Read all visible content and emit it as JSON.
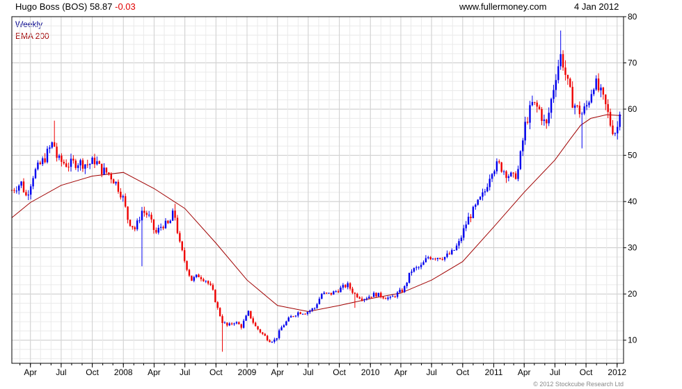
{
  "header": {
    "security": "Hugo Boss (BOS)",
    "last_price": "58.87",
    "change": "-0.03",
    "website": "www.fullermoney.com",
    "date": "4 Jan 2012"
  },
  "legend": {
    "frequency": "Weekly",
    "indicator": "EMA 200"
  },
  "copyright": "© 2012 Stockcube Research Ltd",
  "colors": {
    "up": "#0000ee",
    "down": "#ee0000",
    "ema": "#a00000",
    "grid": "#d8d8d8",
    "axis": "#000000"
  },
  "chart_data": {
    "type": "candlestick",
    "ylim": [
      5,
      80
    ],
    "xlim": [
      "2007-02-05",
      "2012-01-20"
    ],
    "y_ticks": [
      10,
      20,
      30,
      40,
      50,
      60,
      70,
      80
    ],
    "x_ticks": [
      {
        "label": "Apr",
        "date": "2007-04-01"
      },
      {
        "label": "Jul",
        "date": "2007-07-01"
      },
      {
        "label": "Oct",
        "date": "2007-10-01"
      },
      {
        "label": "2008",
        "date": "2008-01-01"
      },
      {
        "label": "Apr",
        "date": "2008-04-01"
      },
      {
        "label": "Jul",
        "date": "2008-07-01"
      },
      {
        "label": "Oct",
        "date": "2008-10-01"
      },
      {
        "label": "2009",
        "date": "2009-01-01"
      },
      {
        "label": "Apr",
        "date": "2009-04-01"
      },
      {
        "label": "Jul",
        "date": "2009-07-01"
      },
      {
        "label": "Oct",
        "date": "2009-10-01"
      },
      {
        "label": "2010",
        "date": "2010-01-01"
      },
      {
        "label": "Apr",
        "date": "2010-04-01"
      },
      {
        "label": "Jul",
        "date": "2010-07-01"
      },
      {
        "label": "Oct",
        "date": "2010-10-01"
      },
      {
        "label": "2011",
        "date": "2011-01-01"
      },
      {
        "label": "Apr",
        "date": "2011-04-01"
      },
      {
        "label": "Jul",
        "date": "2011-07-01"
      },
      {
        "label": "Oct",
        "date": "2011-10-01"
      },
      {
        "label": "2012",
        "date": "2012-01-01"
      }
    ],
    "price_path": [
      [
        "2007-02-05",
        42.5
      ],
      [
        "2007-03-05",
        44
      ],
      [
        "2007-03-20",
        41
      ],
      [
        "2007-04-10",
        46
      ],
      [
        "2007-05-10",
        49
      ],
      [
        "2007-05-25",
        51
      ],
      [
        "2007-06-08",
        53
      ],
      [
        "2007-06-20",
        49
      ],
      [
        "2007-07-20",
        48
      ],
      [
        "2007-08-20",
        48.5
      ],
      [
        "2007-09-20",
        48
      ],
      [
        "2007-10-10",
        49
      ],
      [
        "2007-10-25",
        47
      ],
      [
        "2007-11-20",
        46
      ],
      [
        "2007-12-10",
        44
      ],
      [
        "2007-12-30",
        41
      ],
      [
        "2008-01-15",
        36
      ],
      [
        "2008-02-05",
        34
      ],
      [
        "2008-02-25",
        38
      ],
      [
        "2008-03-15",
        37
      ],
      [
        "2008-04-05",
        33
      ],
      [
        "2008-04-25",
        35
      ],
      [
        "2008-05-15",
        35
      ],
      [
        "2008-05-30",
        38
      ],
      [
        "2008-06-15",
        31
      ],
      [
        "2008-07-01",
        27
      ],
      [
        "2008-07-20",
        23
      ],
      [
        "2008-08-10",
        24
      ],
      [
        "2008-09-01",
        23
      ],
      [
        "2008-09-20",
        21
      ],
      [
        "2008-10-05",
        17
      ],
      [
        "2008-10-20",
        14
      ],
      [
        "2008-11-05",
        13
      ],
      [
        "2008-11-25",
        14
      ],
      [
        "2008-12-15",
        13
      ],
      [
        "2009-01-05",
        16
      ],
      [
        "2009-01-25",
        13
      ],
      [
        "2009-02-20",
        11
      ],
      [
        "2009-03-08",
        10
      ],
      [
        "2009-03-25",
        10
      ],
      [
        "2009-04-15",
        13
      ],
      [
        "2009-05-10",
        15
      ],
      [
        "2009-06-01",
        16
      ],
      [
        "2009-06-25",
        16
      ],
      [
        "2009-07-20",
        17
      ],
      [
        "2009-08-10",
        20
      ],
      [
        "2009-09-05",
        20
      ],
      [
        "2009-10-01",
        21
      ],
      [
        "2009-10-25",
        22
      ],
      [
        "2009-11-15",
        20
      ],
      [
        "2009-12-10",
        19
      ],
      [
        "2010-01-15",
        20
      ],
      [
        "2010-02-05",
        19.5
      ],
      [
        "2010-03-01",
        19
      ],
      [
        "2010-03-20",
        20
      ],
      [
        "2010-04-10",
        21
      ],
      [
        "2010-05-01",
        25
      ],
      [
        "2010-06-01",
        26
      ],
      [
        "2010-06-20",
        28
      ],
      [
        "2010-07-10",
        28
      ],
      [
        "2010-08-10",
        28
      ],
      [
        "2010-09-01",
        29
      ],
      [
        "2010-09-20",
        31
      ],
      [
        "2010-10-15",
        36
      ],
      [
        "2010-11-10",
        39
      ],
      [
        "2010-12-05",
        42
      ],
      [
        "2010-12-25",
        47
      ],
      [
        "2011-01-15",
        48
      ],
      [
        "2011-02-10",
        46
      ],
      [
        "2011-03-01",
        45
      ],
      [
        "2011-03-15",
        47
      ],
      [
        "2011-04-05",
        57
      ],
      [
        "2011-04-25",
        61
      ],
      [
        "2011-05-15",
        60
      ],
      [
        "2011-06-05",
        56
      ],
      [
        "2011-06-20",
        62
      ],
      [
        "2011-07-05",
        68
      ],
      [
        "2011-07-20",
        72
      ],
      [
        "2011-08-05",
        66
      ],
      [
        "2011-08-20",
        62
      ],
      [
        "2011-09-05",
        60
      ],
      [
        "2011-09-20",
        59
      ],
      [
        "2011-10-05",
        61
      ],
      [
        "2011-10-25",
        66
      ],
      [
        "2011-11-15",
        63
      ],
      [
        "2011-12-01",
        60
      ],
      [
        "2011-12-15",
        56
      ],
      [
        "2011-12-28",
        55
      ],
      [
        "2012-01-06",
        57
      ],
      [
        "2012-01-13",
        58.87
      ]
    ],
    "ema_200": [
      [
        "2007-02-05",
        36.5
      ],
      [
        "2007-04-01",
        39.8
      ],
      [
        "2007-07-01",
        43.5
      ],
      [
        "2007-10-01",
        45.5
      ],
      [
        "2008-01-01",
        46.3
      ],
      [
        "2008-04-01",
        42.8
      ],
      [
        "2008-07-01",
        38.5
      ],
      [
        "2008-10-01",
        31
      ],
      [
        "2009-01-01",
        23
      ],
      [
        "2009-04-01",
        17.5
      ],
      [
        "2009-07-01",
        16.2
      ],
      [
        "2009-10-01",
        17.5
      ],
      [
        "2010-01-01",
        19
      ],
      [
        "2010-04-01",
        20.2
      ],
      [
        "2010-07-01",
        23
      ],
      [
        "2010-10-01",
        27
      ],
      [
        "2011-01-01",
        34.5
      ],
      [
        "2011-04-01",
        42
      ],
      [
        "2011-07-01",
        49
      ],
      [
        "2011-08-15",
        53.5
      ],
      [
        "2011-09-15",
        56.5
      ],
      [
        "2011-10-15",
        58
      ],
      [
        "2011-12-01",
        58.8
      ],
      [
        "2012-01-13",
        58.6
      ]
    ],
    "spikes": [
      {
        "date": "2007-06-08",
        "high": 57.5
      },
      {
        "date": "2008-02-25",
        "low": 26
      },
      {
        "date": "2008-05-30",
        "high": 39.5
      },
      {
        "date": "2008-10-20",
        "low": 7.5
      },
      {
        "date": "2009-11-15",
        "low": 17
      },
      {
        "date": "2011-09-20",
        "low": 51.5
      },
      {
        "date": "2011-07-20",
        "high": 77
      }
    ]
  }
}
